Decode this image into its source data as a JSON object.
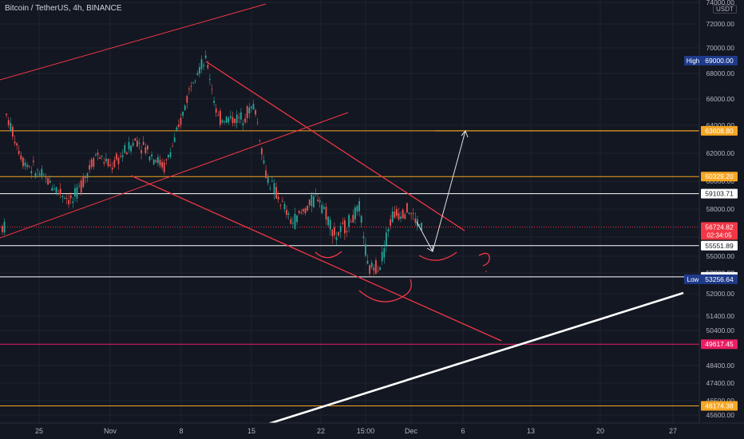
{
  "header": {
    "title": "Bitcoin / TetherUS, 4h, BINANCE",
    "currency": "USDT"
  },
  "colors": {
    "background": "#131722",
    "grid": "#1f232e",
    "up": "#26a69a",
    "down": "#ef5350",
    "trendline": "#f23645",
    "orange_line": "#f5a623",
    "white_line": "#ffffff",
    "pink_line": "#e91e63"
  },
  "chart_data": {
    "type": "candlestick",
    "symbol": "Bitcoin / TetherUS",
    "interval": "4h",
    "exchange": "BINANCE",
    "xlabel": "",
    "ylabel": "",
    "x_ticks": [
      "25",
      "Nov",
      "8",
      "15",
      "22",
      "15:00",
      "Dec",
      "6",
      "13",
      "20",
      "27"
    ],
    "y_ticks": [
      "74000.00",
      "72000.00",
      "70000.00",
      "68000.00",
      "66000.00",
      "64000.00",
      "62000.00",
      "60000.00",
      "58000.00",
      "56000.00",
      "55000.00",
      "53800.00",
      "52000.00",
      "51400.00",
      "50400.00",
      "48400.00",
      "47400.00",
      "46500.00",
      "45600.00"
    ],
    "ylim": [
      45600,
      74000
    ],
    "price_levels": [
      {
        "label": "63608.80",
        "value": 63608.8,
        "color": "#f5a623"
      },
      {
        "label": "60329.20",
        "value": 60329.2,
        "color": "#f5a623"
      },
      {
        "label": "59103.71",
        "value": 59103.71,
        "color": "#ffffff"
      },
      {
        "label": "56724.82",
        "value": 56724.82,
        "color": "#f23645",
        "countdown": "02:34:05"
      },
      {
        "label": "55551.89",
        "value": 55551.89,
        "color": "#ffffff"
      },
      {
        "label": "53465.33",
        "value": 53465.33,
        "color": "#ffffff"
      },
      {
        "label": "49617.45",
        "value": 49617.45,
        "color": "#e91e63"
      },
      {
        "label": "46174.38",
        "value": 46174.38,
        "color": "#f5a623"
      }
    ],
    "high": {
      "tag": "High",
      "label": "69000.00",
      "value": 69000
    },
    "low": {
      "tag": "Low",
      "label": "53256.64",
      "value": 53256.64
    },
    "candle_close_path": [
      [
        "Oct 22",
        65000
      ],
      [
        "Oct 24",
        61500
      ],
      [
        "Oct 27",
        58500
      ],
      [
        "Oct 29",
        62000
      ],
      [
        "Nov 1",
        61000
      ],
      [
        "Nov 3",
        63000
      ],
      [
        "Nov 5",
        61000
      ],
      [
        "Nov 7",
        63500
      ],
      [
        "Nov 9",
        68000
      ],
      [
        "Nov 10",
        69000
      ],
      [
        "Nov 11",
        64500
      ],
      [
        "Nov 13",
        64500
      ],
      [
        "Nov 14",
        65500
      ],
      [
        "Nov 16",
        60500
      ],
      [
        "Nov 18",
        57000
      ],
      [
        "Nov 20",
        59000
      ],
      [
        "Nov 22",
        56000
      ],
      [
        "Nov 24",
        58000
      ],
      [
        "Nov 26",
        54000
      ],
      [
        "Nov 27",
        54500
      ],
      [
        "Nov 28",
        57500
      ],
      [
        "Nov 30",
        58000
      ],
      [
        "Dec 1",
        57000
      ],
      [
        "Dec 2",
        56725
      ]
    ]
  }
}
